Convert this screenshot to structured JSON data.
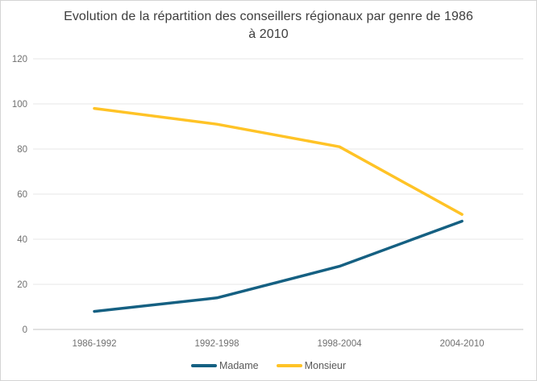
{
  "window": {
    "background": "#ffffff",
    "border_color": "#d4d4d4"
  },
  "title": {
    "text": "Evolution de la répartition des conseillers régionaux par genre de 1986 à 2010",
    "color": "#3d3d3d"
  },
  "chart_data": {
    "type": "line",
    "title": "Evolution de la répartition des conseillers régionaux par genre de 1986 à 2010",
    "categories": [
      "1986-1992",
      "1992-1998",
      "1998-2004",
      "2004-2010"
    ],
    "series": [
      {
        "name": "Madame",
        "values": [
          8,
          14,
          28,
          48
        ],
        "color": "#156082"
      },
      {
        "name": "Monsieur",
        "values": [
          98,
          91,
          81,
          51
        ],
        "color": "#FFC326"
      }
    ],
    "xlabel": "",
    "ylabel": "",
    "ylim": [
      0,
      120
    ],
    "yticks": [
      0,
      20,
      40,
      60,
      80,
      100,
      120
    ],
    "grid": true,
    "gridline_color": "#e7e7e7",
    "axis_line_color": "#c3c3c3",
    "tick_label_color": "#707070",
    "tick_label_size": 11.5,
    "legend_position": "bottom",
    "legend_text_color": "#595959",
    "line_width": 3.5
  }
}
